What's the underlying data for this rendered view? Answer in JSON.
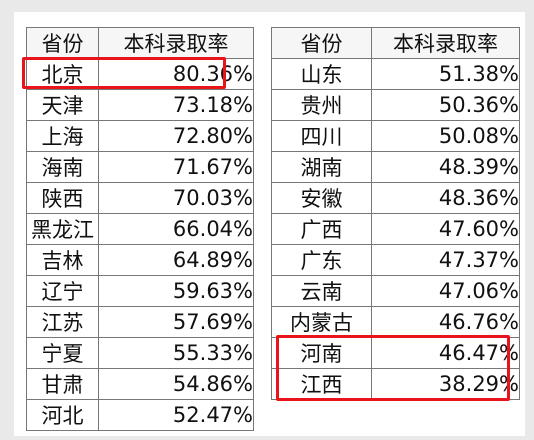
{
  "colors": {
    "highlight": "#e8141a",
    "grid": "#777777"
  },
  "left_table": {
    "headers": [
      "省份",
      "本科录取率"
    ],
    "rows": [
      {
        "province": "北京",
        "rate": "80.36%",
        "highlighted": true
      },
      {
        "province": "天津",
        "rate": "73.18%"
      },
      {
        "province": "上海",
        "rate": "72.80%"
      },
      {
        "province": "海南",
        "rate": "71.67%"
      },
      {
        "province": "陕西",
        "rate": "70.03%"
      },
      {
        "province": "黑龙江",
        "rate": "66.04%"
      },
      {
        "province": "吉林",
        "rate": "64.89%"
      },
      {
        "province": "辽宁",
        "rate": "59.63%"
      },
      {
        "province": "江苏",
        "rate": "57.69%"
      },
      {
        "province": "宁夏",
        "rate": "55.33%"
      },
      {
        "province": "甘肃",
        "rate": "54.86%"
      },
      {
        "province": "河北",
        "rate": "52.47%"
      }
    ]
  },
  "right_table": {
    "headers": [
      "省份",
      "本科录取率"
    ],
    "rows": [
      {
        "province": "山东",
        "rate": "51.38%"
      },
      {
        "province": "贵州",
        "rate": "50.36%"
      },
      {
        "province": "四川",
        "rate": "50.08%"
      },
      {
        "province": "湖南",
        "rate": "48.39%"
      },
      {
        "province": "安徽",
        "rate": "48.36%"
      },
      {
        "province": "广西",
        "rate": "47.60%"
      },
      {
        "province": "广东",
        "rate": "47.37%"
      },
      {
        "province": "云南",
        "rate": "47.06%"
      },
      {
        "province": "内蒙古",
        "rate": "46.76%"
      },
      {
        "province": "河南",
        "rate": "46.47%",
        "highlighted": true
      },
      {
        "province": "江西",
        "rate": "38.29%",
        "highlighted": true
      }
    ]
  }
}
